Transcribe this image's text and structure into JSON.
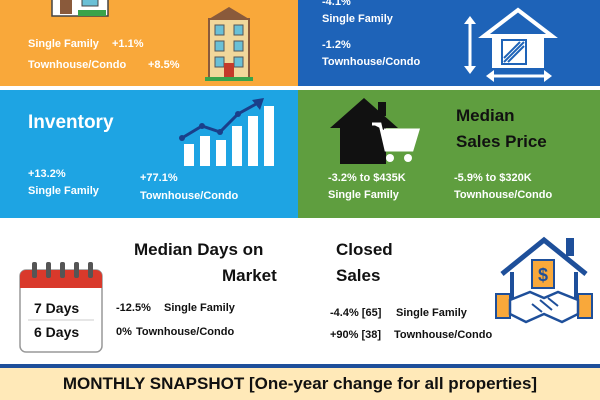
{
  "new_listings": {
    "single_family": {
      "label": "Single Family",
      "change": "+1.1%"
    },
    "townhouse_condo": {
      "label": "Townhouse/Condo",
      "change": "+8.5%"
    }
  },
  "pct_list_price": {
    "single_family": {
      "change": "-4.1%",
      "label": "Single Family"
    },
    "townhouse_condo": {
      "change": "-1.2%",
      "label": "Townhouse/Condo"
    }
  },
  "inventory": {
    "title": "Inventory",
    "single_family": {
      "change": "+13.2%",
      "label": "Single Family"
    },
    "townhouse_condo": {
      "change": "+77.1%",
      "label": "Townhouse/Condo"
    }
  },
  "median_sales_price": {
    "title_line1": "Median",
    "title_line2": "Sales Price",
    "single_family": {
      "value": "-3.2% to $435K",
      "label": "Single Family"
    },
    "townhouse_condo": {
      "value": "-5.9% to $320K",
      "label": "Townhouse/Condo"
    }
  },
  "median_days": {
    "title_line1": "Median Days on",
    "title_line2": "Market",
    "calendar_line1": "7 Days",
    "calendar_line2": "6 Days",
    "single_family": {
      "change": "-12.5%",
      "label": "Single Family"
    },
    "townhouse_condo": {
      "change": "0%",
      "label": "Townhouse/Condo"
    }
  },
  "closed_sales": {
    "title_line1": "Closed",
    "title_line2": "Sales",
    "single_family": {
      "value": "-4.4% [65]",
      "label": "Single Family"
    },
    "townhouse_condo": {
      "value": "+90% [38]",
      "label": "Townhouse/Condo"
    },
    "dollar_symbol": "$"
  },
  "footer": {
    "text": "MONTHLY SNAPSHOT [One-year change for all properties]"
  },
  "icons": {
    "house": "house-icon",
    "building": "building-icon",
    "measure_house": "house-measure-icon",
    "bar_chart": "bar-chart-icon",
    "house_cart": "house-cart-icon",
    "calendar": "calendar-icon",
    "handshake_house": "handshake-house-icon"
  },
  "colors": {
    "orange": "#f9a83a",
    "dark_blue": "#1e63b8",
    "sky_blue": "#1ea4e3",
    "green": "#5f9e3f",
    "footer_bg": "#ffe9b8"
  }
}
